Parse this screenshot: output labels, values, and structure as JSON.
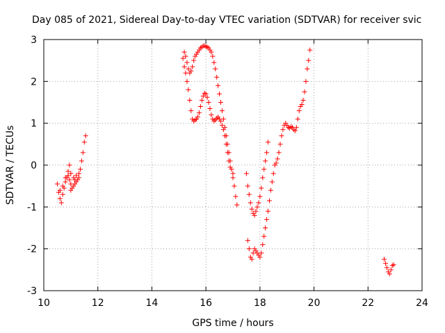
{
  "chart_data": {
    "type": "scatter",
    "title": "Day 085 of 2021, Sidereal Day-to-day VTEC variation (SDTVAR) for receiver svic",
    "xlabel": "GPS time / hours",
    "ylabel": "SDTVAR / TECUs",
    "xlim": [
      10,
      24
    ],
    "ylim": [
      -3,
      3
    ],
    "xticks": [
      10,
      12,
      14,
      16,
      18,
      20,
      22,
      24
    ],
    "yticks": [
      -3,
      -2,
      -1,
      0,
      1,
      2,
      3
    ],
    "xtick_labels": [
      "10",
      "12",
      "14",
      "16",
      "18",
      "20",
      "22",
      "24"
    ],
    "ytick_labels": [
      "-3",
      "-2",
      "-1",
      "0",
      "1",
      "2",
      "3"
    ],
    "grid": true,
    "marker": "plus",
    "series": [
      {
        "name": "SDTVAR",
        "color": "#ff0000",
        "points": [
          [
            10.5,
            -0.45
          ],
          [
            10.55,
            -0.65
          ],
          [
            10.6,
            -0.8
          ],
          [
            10.65,
            -0.9
          ],
          [
            10.7,
            -0.7
          ],
          [
            10.75,
            -0.55
          ],
          [
            10.8,
            -0.4
          ],
          [
            10.85,
            -0.3
          ],
          [
            10.9,
            -0.25
          ],
          [
            10.95,
            -0.35
          ],
          [
            11.0,
            -0.45
          ],
          [
            11.05,
            -0.55
          ],
          [
            11.1,
            -0.5
          ],
          [
            11.15,
            -0.45
          ],
          [
            11.2,
            -0.4
          ],
          [
            11.25,
            -0.35
          ],
          [
            11.3,
            -0.3
          ],
          [
            11.35,
            -0.1
          ],
          [
            11.4,
            0.1
          ],
          [
            11.45,
            0.3
          ],
          [
            11.5,
            0.55
          ],
          [
            11.55,
            0.7
          ],
          [
            10.6,
            -0.6
          ],
          [
            10.7,
            -0.5
          ],
          [
            10.8,
            -0.3
          ],
          [
            10.9,
            -0.15
          ],
          [
            11.0,
            -0.2
          ],
          [
            11.1,
            -0.3
          ],
          [
            11.2,
            -0.25
          ],
          [
            11.3,
            -0.2
          ],
          [
            10.95,
            0.0
          ],
          [
            11.0,
            -0.6
          ],
          [
            11.15,
            -0.35
          ],
          [
            15.15,
            2.55
          ],
          [
            15.2,
            2.7
          ],
          [
            15.25,
            2.6
          ],
          [
            15.3,
            2.45
          ],
          [
            15.35,
            2.3
          ],
          [
            15.4,
            2.2
          ],
          [
            15.45,
            2.25
          ],
          [
            15.5,
            2.35
          ],
          [
            15.55,
            2.5
          ],
          [
            15.6,
            2.6
          ],
          [
            15.65,
            2.65
          ],
          [
            15.7,
            2.7
          ],
          [
            15.75,
            2.75
          ],
          [
            15.8,
            2.8
          ],
          [
            15.85,
            2.82
          ],
          [
            15.9,
            2.85
          ],
          [
            15.95,
            2.85
          ],
          [
            16.0,
            2.83
          ],
          [
            16.05,
            2.82
          ],
          [
            16.1,
            2.8
          ],
          [
            16.15,
            2.75
          ],
          [
            16.2,
            2.7
          ],
          [
            16.25,
            2.6
          ],
          [
            16.3,
            2.45
          ],
          [
            16.35,
            2.3
          ],
          [
            16.4,
            2.1
          ],
          [
            16.45,
            1.9
          ],
          [
            16.5,
            1.7
          ],
          [
            16.55,
            1.5
          ],
          [
            16.6,
            1.3
          ],
          [
            16.65,
            1.1
          ],
          [
            16.7,
            0.9
          ],
          [
            16.75,
            0.7
          ],
          [
            16.8,
            0.5
          ],
          [
            16.85,
            0.3
          ],
          [
            16.9,
            0.1
          ],
          [
            16.95,
            -0.1
          ],
          [
            17.0,
            -0.3
          ],
          [
            17.05,
            -0.5
          ],
          [
            17.1,
            -0.75
          ],
          [
            17.15,
            -0.95
          ],
          [
            15.2,
            2.35
          ],
          [
            15.25,
            2.2
          ],
          [
            15.3,
            2.0
          ],
          [
            15.35,
            1.8
          ],
          [
            15.4,
            1.55
          ],
          [
            15.45,
            1.3
          ],
          [
            15.5,
            1.1
          ],
          [
            15.55,
            1.05
          ],
          [
            15.6,
            1.08
          ],
          [
            15.65,
            1.1
          ],
          [
            15.7,
            1.15
          ],
          [
            15.75,
            1.25
          ],
          [
            15.8,
            1.4
          ],
          [
            15.85,
            1.55
          ],
          [
            15.9,
            1.65
          ],
          [
            15.95,
            1.72
          ],
          [
            16.0,
            1.7
          ],
          [
            16.05,
            1.62
          ],
          [
            16.1,
            1.5
          ],
          [
            16.15,
            1.35
          ],
          [
            16.2,
            1.2
          ],
          [
            16.25,
            1.1
          ],
          [
            16.3,
            1.05
          ],
          [
            16.35,
            1.08
          ],
          [
            16.4,
            1.12
          ],
          [
            16.45,
            1.15
          ],
          [
            16.5,
            1.1
          ],
          [
            16.55,
            1.05
          ],
          [
            16.6,
            0.95
          ],
          [
            16.65,
            0.85
          ],
          [
            16.7,
            0.7
          ],
          [
            16.75,
            0.5
          ],
          [
            16.8,
            0.3
          ],
          [
            16.85,
            0.1
          ],
          [
            16.9,
            -0.05
          ],
          [
            16.95,
            -0.1
          ],
          [
            17.0,
            -0.2
          ],
          [
            17.5,
            -0.2
          ],
          [
            17.55,
            -0.5
          ],
          [
            17.6,
            -0.7
          ],
          [
            17.65,
            -0.9
          ],
          [
            17.7,
            -1.05
          ],
          [
            17.75,
            -1.15
          ],
          [
            17.8,
            -1.2
          ],
          [
            17.85,
            -1.1
          ],
          [
            17.9,
            -1.0
          ],
          [
            17.95,
            -0.9
          ],
          [
            18.0,
            -0.75
          ],
          [
            18.05,
            -0.55
          ],
          [
            18.1,
            -0.3
          ],
          [
            18.15,
            -0.1
          ],
          [
            18.2,
            0.1
          ],
          [
            18.25,
            0.3
          ],
          [
            18.3,
            0.55
          ],
          [
            17.55,
            -1.8
          ],
          [
            17.6,
            -2.0
          ],
          [
            17.65,
            -2.2
          ],
          [
            17.7,
            -2.25
          ],
          [
            17.75,
            -2.1
          ],
          [
            17.8,
            -2.0
          ],
          [
            17.85,
            -2.05
          ],
          [
            17.9,
            -2.1
          ],
          [
            17.95,
            -2.15
          ],
          [
            18.0,
            -2.2
          ],
          [
            18.05,
            -2.1
          ],
          [
            18.1,
            -1.9
          ],
          [
            18.15,
            -1.7
          ],
          [
            18.2,
            -1.5
          ],
          [
            18.25,
            -1.3
          ],
          [
            18.3,
            -1.1
          ],
          [
            18.35,
            -0.85
          ],
          [
            18.4,
            -0.6
          ],
          [
            18.45,
            -0.4
          ],
          [
            18.5,
            -0.2
          ],
          [
            18.55,
            0.0
          ],
          [
            18.6,
            0.05
          ],
          [
            18.65,
            0.15
          ],
          [
            18.7,
            0.3
          ],
          [
            18.75,
            0.5
          ],
          [
            18.8,
            0.7
          ],
          [
            18.85,
            0.85
          ],
          [
            18.9,
            0.95
          ],
          [
            18.95,
            1.0
          ],
          [
            19.0,
            0.95
          ],
          [
            19.05,
            0.9
          ],
          [
            19.1,
            0.88
          ],
          [
            19.15,
            0.92
          ],
          [
            19.2,
            0.9
          ],
          [
            19.25,
            0.85
          ],
          [
            19.3,
            0.82
          ],
          [
            19.35,
            0.9
          ],
          [
            19.4,
            1.1
          ],
          [
            19.45,
            1.3
          ],
          [
            19.5,
            1.4
          ],
          [
            19.55,
            1.45
          ],
          [
            19.6,
            1.55
          ],
          [
            19.65,
            1.75
          ],
          [
            19.7,
            2.0
          ],
          [
            19.75,
            2.3
          ],
          [
            19.8,
            2.5
          ],
          [
            19.85,
            2.75
          ],
          [
            22.6,
            -2.25
          ],
          [
            22.65,
            -2.35
          ],
          [
            22.7,
            -2.45
          ],
          [
            22.75,
            -2.55
          ],
          [
            22.8,
            -2.6
          ],
          [
            22.85,
            -2.5
          ],
          [
            22.9,
            -2.4
          ],
          [
            22.95,
            -2.38
          ]
        ]
      }
    ]
  }
}
